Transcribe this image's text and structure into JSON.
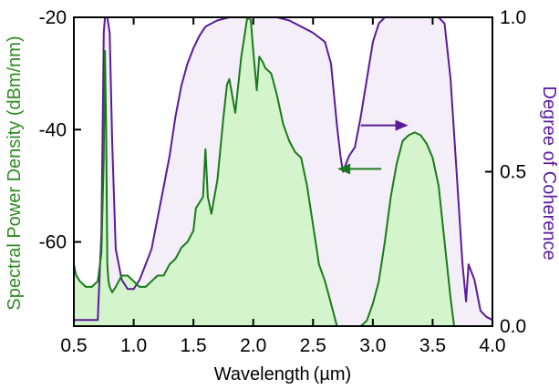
{
  "chart_data": {
    "type": "area",
    "title": "",
    "xlabel": "Wavelength (µm)",
    "ylabel_left": "Spectral Power Density (dBm/nm)",
    "ylabel_right": "Degree of Coherence",
    "xlim": [
      0.5,
      4.0
    ],
    "ylim_left": [
      -75,
      -20
    ],
    "ylim_right": [
      0.0,
      1.0
    ],
    "x_ticks": [
      "0.5",
      "1.0",
      "1.5",
      "2.0",
      "2.5",
      "3.0",
      "3.5",
      "4.0"
    ],
    "y_left_ticks": [
      "-20",
      "-40",
      "-60"
    ],
    "y_right_ticks": [
      "1.0",
      "0.5",
      "0.0"
    ],
    "grid": false,
    "colors": {
      "spectrum_line": "#1a7a1a",
      "spectrum_fill": "#d4f5cc",
      "coherence_line": "#5a1a9a",
      "coherence_fill": "#f3eef8",
      "left_axis_title": "#2e8b22",
      "right_axis_title": "#5a1aa0"
    },
    "series": [
      {
        "axis": "left",
        "x": [
          0.5,
          0.52,
          0.55,
          0.6,
          0.65,
          0.7,
          0.73,
          0.75,
          0.76,
          0.77,
          0.78,
          0.79,
          0.8,
          0.82,
          0.85,
          0.9,
          0.95,
          1.0,
          1.05,
          1.1,
          1.15,
          1.2,
          1.25,
          1.3,
          1.35,
          1.4,
          1.45,
          1.5,
          1.52,
          1.55,
          1.58,
          1.6,
          1.62,
          1.65,
          1.7,
          1.75,
          1.78,
          1.8,
          1.85,
          1.9,
          1.95,
          1.98,
          2.0,
          2.03,
          2.05,
          2.08,
          2.1,
          2.15,
          2.2,
          2.25,
          2.3,
          2.35,
          2.4,
          2.45,
          2.5,
          2.55,
          2.6,
          2.65,
          2.7,
          2.75,
          2.8,
          2.85,
          2.9,
          2.95,
          3.0,
          3.05,
          3.1,
          3.15,
          3.2,
          3.25,
          3.3,
          3.35,
          3.4,
          3.45,
          3.5,
          3.55,
          3.6,
          3.65,
          3.68,
          3.7
        ],
        "values": [
          -64,
          -66,
          -67,
          -68,
          -68,
          -67,
          -62,
          -45,
          -26,
          -40,
          -64,
          -67,
          -68,
          -69,
          -68,
          -66,
          -66,
          -67,
          -68,
          -68,
          -67,
          -66,
          -66,
          -64,
          -63,
          -61,
          -60,
          -58,
          -54,
          -53,
          -52,
          -43.5,
          -52,
          -55,
          -49,
          -38,
          -32,
          -31,
          -37,
          -27,
          -20,
          -20.5,
          -26,
          -33,
          -27,
          -28,
          -29,
          -30,
          -34,
          -39,
          -42,
          -44,
          -45,
          -50,
          -57,
          -64,
          -67,
          -71,
          -75,
          -75,
          -75,
          -75,
          -75,
          -74,
          -71,
          -67,
          -60,
          -52,
          -46,
          -42,
          -41,
          -40.5,
          -41,
          -42.5,
          -45,
          -50,
          -60,
          -70,
          -75,
          -75
        ]
      },
      {
        "axis": "right",
        "x": [
          0.5,
          0.55,
          0.6,
          0.65,
          0.7,
          0.73,
          0.75,
          0.76,
          0.78,
          0.8,
          0.82,
          0.85,
          0.9,
          0.95,
          1.0,
          1.05,
          1.1,
          1.15,
          1.2,
          1.25,
          1.3,
          1.35,
          1.4,
          1.45,
          1.5,
          1.55,
          1.6,
          1.65,
          1.7,
          1.8,
          1.9,
          2.0,
          2.1,
          2.2,
          2.3,
          2.4,
          2.5,
          2.6,
          2.65,
          2.7,
          2.73,
          2.75,
          2.8,
          2.85,
          2.9,
          2.95,
          3.0,
          3.05,
          3.1,
          3.2,
          3.4,
          3.55,
          3.6,
          3.65,
          3.7,
          3.75,
          3.78,
          3.8,
          3.85,
          3.9,
          3.95,
          4.0
        ],
        "values": [
          0.02,
          0.02,
          0.02,
          0.02,
          0.02,
          0.3,
          0.95,
          1.0,
          1.0,
          0.95,
          0.6,
          0.25,
          0.15,
          0.12,
          0.12,
          0.15,
          0.2,
          0.25,
          0.35,
          0.45,
          0.55,
          0.68,
          0.78,
          0.85,
          0.9,
          0.94,
          0.97,
          0.98,
          0.99,
          1.0,
          1.0,
          1.0,
          1.0,
          1.0,
          0.99,
          0.97,
          0.95,
          0.92,
          0.85,
          0.65,
          0.55,
          0.5,
          0.55,
          0.58,
          0.68,
          0.8,
          0.92,
          0.98,
          1.0,
          1.0,
          1.0,
          1.0,
          0.98,
          0.8,
          0.5,
          0.2,
          0.08,
          0.2,
          0.15,
          0.05,
          0.03,
          0.02
        ]
      }
    ],
    "annotations": [
      {
        "type": "arrow",
        "direction": "right",
        "series_axis": "right",
        "x_from": 2.9,
        "x_to": 3.28,
        "y": 0.65
      },
      {
        "type": "arrow",
        "direction": "left",
        "series_axis": "left",
        "x_from": 3.07,
        "x_to": 2.72,
        "y": -47
      }
    ]
  }
}
